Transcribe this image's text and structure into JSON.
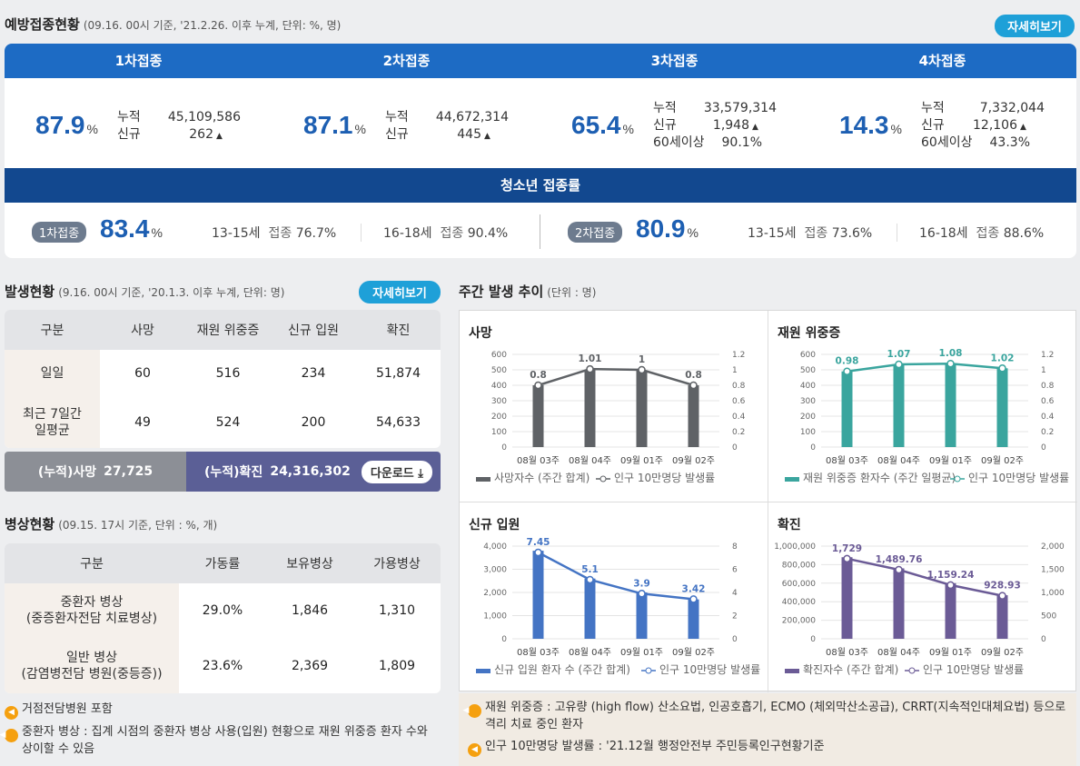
{
  "vaccination": {
    "title": "예방접종현황",
    "subtitle": "(09.16. 00시 기준, '21.2.26. 이후 누계, 단위: %, 명)",
    "detail_label": "자세히보기",
    "doses": [
      {
        "name": "1차접종",
        "pct": "87.9",
        "unit": "%",
        "rows": [
          {
            "k": "누적",
            "v": "45,109,586"
          },
          {
            "k": "신규",
            "v": "262",
            "up": "▲"
          }
        ]
      },
      {
        "name": "2차접종",
        "pct": "87.1",
        "unit": "%",
        "rows": [
          {
            "k": "누적",
            "v": "44,672,314"
          },
          {
            "k": "신규",
            "v": "445",
            "up": "▲"
          }
        ]
      },
      {
        "name": "3차접종",
        "pct": "65.4",
        "unit": "%",
        "rows": [
          {
            "k": "누적",
            "v": "33,579,314"
          },
          {
            "k": "신규",
            "v": "1,948",
            "up": "▲"
          },
          {
            "k": "60세이상",
            "v": "90.1%"
          }
        ]
      },
      {
        "name": "4차접종",
        "pct": "14.3",
        "unit": "%",
        "rows": [
          {
            "k": "누적",
            "v": "7,332,044"
          },
          {
            "k": "신규",
            "v": "12,106",
            "up": "▲"
          },
          {
            "k": "60세이상",
            "v": "43.3%"
          }
        ]
      }
    ],
    "teen": {
      "title": "청소년 접종률",
      "first": {
        "badge": "1차접종",
        "pct": "83.4",
        "unit": "%",
        "items": [
          {
            "age": "13-15세",
            "label": "접종",
            "value": "76.7%"
          },
          {
            "age": "16-18세",
            "label": "접종",
            "value": "90.4%"
          }
        ]
      },
      "second": {
        "badge": "2차접종",
        "pct": "80.9",
        "unit": "%",
        "items": [
          {
            "age": "13-15세",
            "label": "접종",
            "value": "73.6%"
          },
          {
            "age": "16-18세",
            "label": "접종",
            "value": "88.6%"
          }
        ]
      }
    }
  },
  "occurrence": {
    "title": "발생현황",
    "subtitle": "(9.16. 00시 기준, '20.1.3. 이후 누계, 단위: 명)",
    "detail_label": "자세히보기",
    "headers": [
      "구분",
      "사망",
      "재원 위중증",
      "신규 입원",
      "확진"
    ],
    "rows": [
      {
        "label": "일일",
        "values": [
          "60",
          "516",
          "234",
          "51,874"
        ]
      },
      {
        "label": "최근 7일간\n일평균",
        "values": [
          "49",
          "524",
          "200",
          "54,633"
        ]
      }
    ],
    "cum_death_label": "(누적)사망",
    "cum_death_value": "27,725",
    "cum_case_label": "(누적)확진",
    "cum_case_value": "24,316,302",
    "download_label": "다운로드",
    "download_icon": "download-icon"
  },
  "beds": {
    "title": "병상현황",
    "subtitle": "(09.15. 17시 기준, 단위 : %, 개)",
    "headers": [
      "구분",
      "가동률",
      "보유병상",
      "가용병상"
    ],
    "rows": [
      {
        "label": "중환자 병상\n(중증환자전담 치료병상)",
        "values": [
          "29.0%",
          "1,846",
          "1,310"
        ]
      },
      {
        "label": "일반 병상\n(감염병전담 병원(중등증))",
        "values": [
          "23.6%",
          "2,369",
          "1,809"
        ]
      }
    ]
  },
  "weekly": {
    "title": "주간 발생 추이",
    "subtitle": "(단위 : 명)"
  },
  "chart_data": [
    {
      "type": "bar",
      "title": "사망",
      "categories": [
        "08월 03주",
        "08월 04주",
        "09월 01주",
        "09월 02주"
      ],
      "series": [
        {
          "name": "사망자수 (주간 합계)",
          "values": [
            400,
            500,
            495,
            400
          ]
        },
        {
          "name": "인구 10만명당 발생률",
          "type": "line",
          "values": [
            0.8,
            1.01,
            1,
            0.8
          ]
        }
      ],
      "ylim": [
        0,
        600
      ],
      "y2lim": [
        0,
        1.2
      ],
      "yticks": [
        "0",
        "100",
        "200",
        "300",
        "400",
        "500",
        "600"
      ],
      "y2ticks": [
        "0",
        "0.2",
        "0.4",
        "0.6",
        "0.8",
        "1",
        "1.2"
      ],
      "color": "#5f6266"
    },
    {
      "type": "bar",
      "title": "재원 위중증",
      "categories": [
        "08월 03주",
        "08월 04주",
        "09월 01주",
        "09월 02주"
      ],
      "series": [
        {
          "name": "재원 위중증 환자수 (주간 일평균)",
          "values": [
            490,
            535,
            540,
            510
          ]
        },
        {
          "name": "인구 10만명당 발생률",
          "type": "line",
          "values": [
            0.98,
            1.07,
            1.08,
            1.02
          ]
        }
      ],
      "ylim": [
        0,
        600
      ],
      "y2lim": [
        0,
        1.2
      ],
      "yticks": [
        "0",
        "100",
        "200",
        "300",
        "400",
        "500",
        "600"
      ],
      "y2ticks": [
        "0",
        "0.2",
        "0.4",
        "0.6",
        "0.8",
        "1",
        "1.2"
      ],
      "color": "#3aa59e"
    },
    {
      "type": "bar",
      "title": "신규 입원",
      "categories": [
        "08월 03주",
        "08월 04주",
        "09월 01주",
        "09월 02주"
      ],
      "series": [
        {
          "name": "신규 입원 환자 수 (주간 합계)",
          "values": [
            3800,
            2600,
            2000,
            1700
          ]
        },
        {
          "name": "인구 10만명당 발생률",
          "type": "line",
          "values": [
            7.45,
            5.1,
            3.9,
            3.42
          ]
        }
      ],
      "ylim": [
        0,
        4000
      ],
      "y2lim": [
        0,
        8
      ],
      "yticks": [
        "0",
        "1,000",
        "2,000",
        "3,000",
        "4,000"
      ],
      "y2ticks": [
        "0",
        "2",
        "4",
        "6",
        "8"
      ],
      "color": "#4474c4"
    },
    {
      "type": "bar",
      "title": "확진",
      "categories": [
        "08월 03주",
        "08월 04주",
        "09월 01주",
        "09월 02주"
      ],
      "series": [
        {
          "name": "확진자수 (주간 합계)",
          "values": [
            880000,
            760000,
            600000,
            470000
          ]
        },
        {
          "name": "인구 10만명당 발생률",
          "type": "line",
          "values": [
            1729,
            1489.76,
            1159.24,
            928.93
          ]
        }
      ],
      "point_labels": [
        "1,729",
        "1,489.76",
        "1,159.24",
        "928.93"
      ],
      "ylim": [
        0,
        1000000
      ],
      "y2lim": [
        0,
        2000
      ],
      "yticks": [
        "0",
        "200,000",
        "400,000",
        "600,000",
        "800,000",
        "1,000,000"
      ],
      "y2ticks": [
        "0",
        "500",
        "1,000",
        "1,500",
        "2,000"
      ],
      "color": "#6b5b96"
    }
  ],
  "notes_left": [
    "거점전담병원 포함",
    "중환자 병상 : 집계 시점의 중환자 병상 사용(입원) 현황으로 재원 위중증 환자 수와 상이할 수 있음"
  ],
  "notes_right": [
    "재원 위중증 : 고유량 (high flow) 산소요법, 인공호흡기, ECMO (체외막산소공급), CRRT(지속적인대체요법) 등으로 격리 치료 중인 환자",
    "인구 10만명당 발생률 : '21.12월 행정안전부 주민등록인구현황기준"
  ]
}
